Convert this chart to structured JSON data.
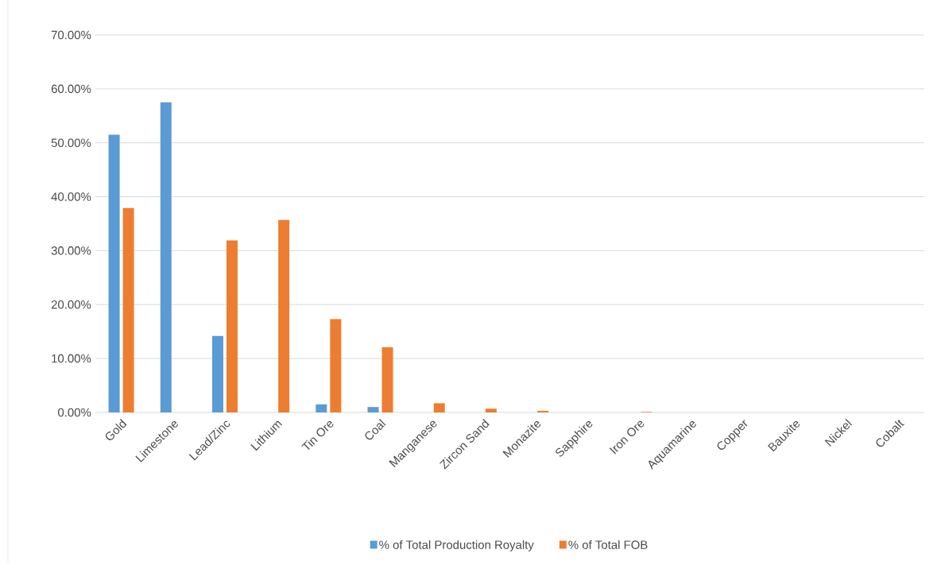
{
  "chart_data": {
    "type": "bar",
    "categories": [
      "Gold",
      "Limestone",
      "Lead/Zinc",
      "Lithium",
      "Tin Ore",
      "Coal",
      "Manganese",
      "Zircon Sand",
      "Monazite",
      "Sapphire",
      "Iron Ore",
      "Aquamarine",
      "Copper",
      "Bauxite",
      "Nickel",
      "Cobalt"
    ],
    "series": [
      {
        "name": "% of Total Production Royalty",
        "color": "#5b9bd5",
        "values": [
          51.5,
          57.5,
          14.2,
          0,
          1.5,
          1.0,
          0,
          0,
          0,
          0,
          0,
          0,
          0,
          0,
          0,
          0
        ]
      },
      {
        "name": "% of Total FOB",
        "color": "#ed7d31",
        "values": [
          37.9,
          0,
          31.9,
          35.7,
          17.3,
          12.1,
          1.7,
          0.7,
          0.3,
          0,
          0.1,
          0,
          0,
          0,
          0,
          0
        ]
      }
    ],
    "ylim": [
      0,
      70
    ],
    "yticks": [
      {
        "value": 0,
        "label": "0.00%"
      },
      {
        "value": 10,
        "label": "10.00%"
      },
      {
        "value": 20,
        "label": "20.00%"
      },
      {
        "value": 30,
        "label": "30.00%"
      },
      {
        "value": 40,
        "label": "40.00%"
      },
      {
        "value": 50,
        "label": "50.00%"
      },
      {
        "value": 60,
        "label": "60.00%"
      },
      {
        "value": 70,
        "label": "70.00%"
      }
    ],
    "grid": "y",
    "legend": "bottom"
  }
}
